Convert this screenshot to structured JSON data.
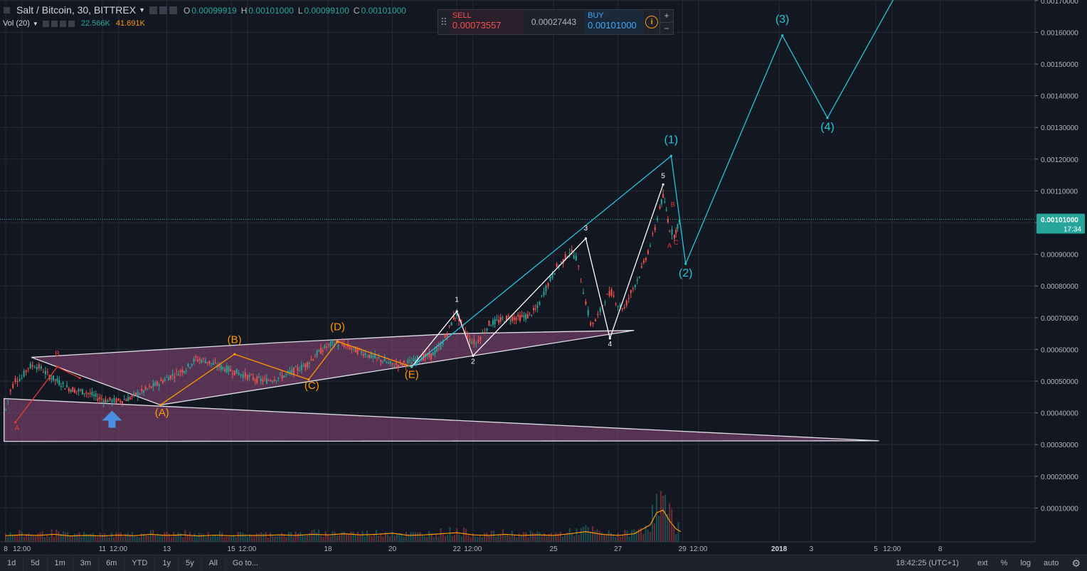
{
  "header": {
    "symbol": "Salt / Bitcoin, 30, BITTREX",
    "ohlc": [
      {
        "k": "O",
        "v": "0.00099919"
      },
      {
        "k": "H",
        "v": "0.00101000"
      },
      {
        "k": "L",
        "v": "0.00099100"
      },
      {
        "k": "C",
        "v": "0.00101000"
      }
    ]
  },
  "volume": {
    "label": "Vol (20)",
    "v1": "22.566K",
    "v2": "41.691K",
    "v1_color": "#26a69a",
    "v2_color": "#ff9800"
  },
  "trade": {
    "sell_label": "SELL",
    "sell_price": "0.00073557",
    "spread": "0.00027443",
    "buy_label": "BUY",
    "buy_price": "0.00101000",
    "info": "i",
    "plus": "+",
    "minus": "−"
  },
  "bottom_bar": {
    "timeframes": [
      "1d",
      "5d",
      "1m",
      "3m",
      "6m",
      "YTD",
      "1y",
      "5y",
      "All",
      "Go to..."
    ],
    "time": "18:42:25 (UTC+1)",
    "right": [
      "ext",
      "%",
      "log",
      "auto"
    ]
  },
  "chart_data": {
    "type": "candlestick",
    "price_axis": {
      "ticks": [
        "0.00170000",
        "0.00160000",
        "0.00150000",
        "0.00140000",
        "0.00130000",
        "0.00120000",
        "0.00110000",
        "0.00100000",
        "0.00090000",
        "0.00080000",
        "0.00070000",
        "0.00060000",
        "0.00050000",
        "0.00040000",
        "0.00030000",
        "0.00020000",
        "0.00010000"
      ],
      "current_price": "0.00101000",
      "countdown": "17:34",
      "current_color": "#26a69a"
    },
    "time_axis": {
      "ticks": [
        "8",
        "12:00",
        "11",
        "12:00",
        "13",
        "15",
        "12:00",
        "18",
        "20",
        "22",
        "12:00",
        "25",
        "27",
        "29",
        "12:00",
        "2018",
        "3",
        "5",
        "12:00",
        "8"
      ]
    },
    "price_path": [
      [
        8.0,
        0.00041
      ],
      [
        8.15,
        0.00047
      ],
      [
        8.3,
        0.000505
      ],
      [
        8.5,
        0.00051
      ],
      [
        8.7,
        0.000545
      ],
      [
        8.9,
        0.00055
      ],
      [
        9.1,
        0.00054
      ],
      [
        9.3,
        0.00052
      ],
      [
        9.6,
        0.0005
      ],
      [
        9.9,
        0.00048
      ],
      [
        10.2,
        0.00047
      ],
      [
        10.5,
        0.000465
      ],
      [
        10.8,
        0.00045
      ],
      [
        11.1,
        0.00044
      ],
      [
        11.5,
        0.000437
      ],
      [
        11.8,
        0.000445
      ],
      [
        12.1,
        0.00046
      ],
      [
        12.4,
        0.000475
      ],
      [
        12.7,
        0.00049
      ],
      [
        13.0,
        0.00051
      ],
      [
        13.3,
        0.000525
      ],
      [
        13.6,
        0.00054
      ],
      [
        13.9,
        0.00057
      ],
      [
        14.2,
        0.000565
      ],
      [
        14.5,
        0.00055
      ],
      [
        14.8,
        0.00054
      ],
      [
        15.1,
        0.00053
      ],
      [
        15.5,
        0.000515
      ],
      [
        15.8,
        0.000505
      ],
      [
        16.1,
        0.000502
      ],
      [
        16.4,
        0.00051
      ],
      [
        16.7,
        0.00052
      ],
      [
        17.0,
        0.000535
      ],
      [
        17.3,
        0.00055
      ],
      [
        17.6,
        0.00058
      ],
      [
        17.9,
        0.000605
      ],
      [
        18.2,
        0.00062
      ],
      [
        18.5,
        0.000615
      ],
      [
        18.8,
        0.0006
      ],
      [
        19.1,
        0.00059
      ],
      [
        19.4,
        0.000575
      ],
      [
        19.7,
        0.000565
      ],
      [
        20.0,
        0.00055
      ],
      [
        20.3,
        0.000555
      ],
      [
        20.6,
        0.00056
      ],
      [
        20.9,
        0.000575
      ],
      [
        21.2,
        0.00058
      ],
      [
        21.5,
        0.00061
      ],
      [
        21.7,
        0.00065
      ],
      [
        21.9,
        0.0007
      ],
      [
        22.0,
        0.00071
      ],
      [
        22.2,
        0.00067
      ],
      [
        22.4,
        0.00063
      ],
      [
        22.6,
        0.00062
      ],
      [
        22.8,
        0.00065
      ],
      [
        23.0,
        0.00068
      ],
      [
        23.3,
        0.00069
      ],
      [
        23.6,
        0.0007
      ],
      [
        23.9,
        0.0007
      ],
      [
        24.2,
        0.000705
      ],
      [
        24.5,
        0.00073
      ],
      [
        24.7,
        0.00078
      ],
      [
        24.9,
        0.00082
      ],
      [
        25.1,
        0.00086
      ],
      [
        25.3,
        0.00088
      ],
      [
        25.5,
        0.00091
      ],
      [
        25.7,
        0.00089
      ],
      [
        25.85,
        0.00082
      ],
      [
        26.0,
        0.00075
      ],
      [
        26.15,
        0.00068
      ],
      [
        26.3,
        0.00069
      ],
      [
        26.45,
        0.00072
      ],
      [
        26.6,
        0.00076
      ],
      [
        26.8,
        0.00078
      ],
      [
        27.0,
        0.00074
      ],
      [
        27.2,
        0.00073
      ],
      [
        27.4,
        0.00078
      ],
      [
        27.6,
        0.00082
      ],
      [
        27.8,
        0.00087
      ],
      [
        28.0,
        0.00093
      ],
      [
        28.15,
        0.00098
      ],
      [
        28.3,
        0.00105
      ],
      [
        28.4,
        0.00108
      ],
      [
        28.5,
        0.00104
      ],
      [
        28.6,
        0.00098
      ],
      [
        28.75,
        0.00096
      ],
      [
        28.85,
        0.00099
      ],
      [
        28.95,
        0.00101
      ]
    ],
    "volume_profile": [
      [
        8.0,
        1.5e-05
      ],
      [
        8.5,
        1.8e-05
      ],
      [
        9.0,
        1.6e-05
      ],
      [
        9.5,
        2e-05
      ],
      [
        10.0,
        1.4e-05
      ],
      [
        10.5,
        1.6e-05
      ],
      [
        11.0,
        1.4e-05
      ],
      [
        11.5,
        1.7e-05
      ],
      [
        12.0,
        1.5e-05
      ],
      [
        12.5,
        2e-05
      ],
      [
        13.0,
        1.6e-05
      ],
      [
        13.5,
        1.8e-05
      ],
      [
        14.0,
        1.4e-05
      ],
      [
        14.5,
        1.7e-05
      ],
      [
        15.0,
        1.5e-05
      ],
      [
        15.5,
        1.6e-05
      ],
      [
        16.0,
        1.6e-05
      ],
      [
        16.5,
        1.8e-05
      ],
      [
        17.0,
        1.6e-05
      ],
      [
        17.5,
        2e-05
      ],
      [
        18.0,
        1.8e-05
      ],
      [
        18.5,
        2.2e-05
      ],
      [
        19.0,
        1.8e-05
      ],
      [
        19.5,
        2e-05
      ],
      [
        20.0,
        2.4e-05
      ],
      [
        20.5,
        1.6e-05
      ],
      [
        21.0,
        1.8e-05
      ],
      [
        21.5,
        2.2e-05
      ],
      [
        22.0,
        2.6e-05
      ],
      [
        22.5,
        1.8e-05
      ],
      [
        23.0,
        1.6e-05
      ],
      [
        23.5,
        2e-05
      ],
      [
        24.0,
        1.6e-05
      ],
      [
        24.5,
        1.8e-05
      ],
      [
        25.0,
        1.6e-05
      ],
      [
        25.5,
        2.2e-05
      ],
      [
        26.0,
        3e-05
      ],
      [
        26.5,
        2e-05
      ],
      [
        27.0,
        1.6e-05
      ],
      [
        27.5,
        2.2e-05
      ],
      [
        28.0,
        5.5e-05
      ],
      [
        28.2,
        0.0001
      ],
      [
        28.4,
        0.00011
      ],
      [
        28.6,
        7e-05
      ],
      [
        28.8,
        4e-05
      ],
      [
        28.95,
        3e-05
      ]
    ],
    "triangles": [
      {
        "points": [
          [
            8.8,
            0.000575
          ],
          [
            16.2,
            0.00062
          ],
          [
            22.0,
            0.00065
          ],
          [
            27.5,
            0.00066
          ],
          [
            12.8,
            0.000425
          ]
        ],
        "fill": "#8e4b7a"
      },
      {
        "points": [
          [
            7.95,
            0.000445
          ],
          [
            35.1,
            0.000312
          ],
          [
            7.95,
            0.00031
          ]
        ],
        "fill": "#8e4b7a"
      }
    ],
    "lines": [
      {
        "color": "#e53935",
        "points": [
          [
            8.3,
            0.00037
          ],
          [
            9.6,
            0.000545
          ],
          [
            10.3,
            0.00051
          ]
        ]
      },
      {
        "color": "#ff9800",
        "points": [
          [
            12.8,
            0.000425
          ],
          [
            15.1,
            0.000585
          ],
          [
            17.4,
            0.000505
          ],
          [
            18.3,
            0.000625
          ],
          [
            20.6,
            0.000545
          ]
        ]
      },
      {
        "color": "#ffffff",
        "points": [
          [
            20.6,
            0.000545
          ],
          [
            22.0,
            0.00072
          ],
          [
            22.5,
            0.00058
          ],
          [
            26.0,
            0.00095
          ],
          [
            26.75,
            0.000635
          ],
          [
            28.4,
            0.00112
          ]
        ]
      },
      {
        "color": "#26c6da",
        "points": [
          [
            20.6,
            0.000545
          ],
          [
            28.65,
            0.00121
          ],
          [
            29.1,
            0.00087
          ],
          [
            32.1,
            0.00159
          ],
          [
            33.5,
            0.00133
          ],
          [
            35.8,
            0.00175
          ]
        ]
      }
    ],
    "labels": [
      {
        "t": "A",
        "x": 8.35,
        "y": 0.000345,
        "c": "#e53935",
        "s": 10
      },
      {
        "t": "B",
        "x": 9.6,
        "y": 0.00058,
        "c": "#e53935",
        "s": 10
      },
      {
        "t": "(A)",
        "x": 12.85,
        "y": 0.00039,
        "c": "#ff9800",
        "s": 15
      },
      {
        "t": "(B)",
        "x": 15.1,
        "y": 0.00062,
        "c": "#ff9800",
        "s": 15
      },
      {
        "t": "(C)",
        "x": 17.5,
        "y": 0.000475,
        "c": "#ff9800",
        "s": 15
      },
      {
        "t": "(D)",
        "x": 18.3,
        "y": 0.00066,
        "c": "#ff9800",
        "s": 15
      },
      {
        "t": "(E)",
        "x": 20.6,
        "y": 0.00051,
        "c": "#ff9800",
        "s": 15
      },
      {
        "t": "1",
        "x": 22.0,
        "y": 0.00075,
        "c": "#ffffff",
        "s": 10
      },
      {
        "t": "2",
        "x": 22.5,
        "y": 0.000555,
        "c": "#ffffff",
        "s": 10
      },
      {
        "t": "3",
        "x": 26.0,
        "y": 0.000975,
        "c": "#ffffff",
        "s": 10
      },
      {
        "t": "4",
        "x": 26.75,
        "y": 0.00061,
        "c": "#ffffff",
        "s": 10
      },
      {
        "t": "5",
        "x": 28.4,
        "y": 0.00114,
        "c": "#ffffff",
        "s": 10
      },
      {
        "t": "B",
        "x": 28.7,
        "y": 0.00105,
        "c": "#e53935",
        "s": 9
      },
      {
        "t": "A",
        "x": 28.6,
        "y": 0.00092,
        "c": "#e53935",
        "s": 9
      },
      {
        "t": "C",
        "x": 28.8,
        "y": 0.00093,
        "c": "#e53935",
        "s": 9
      },
      {
        "t": "(1)",
        "x": 28.65,
        "y": 0.00125,
        "c": "#26c6da",
        "s": 16
      },
      {
        "t": "(2)",
        "x": 29.1,
        "y": 0.00083,
        "c": "#26c6da",
        "s": 16
      },
      {
        "t": "(3)",
        "x": 32.1,
        "y": 0.00163,
        "c": "#26c6da",
        "s": 16
      },
      {
        "t": "(4)",
        "x": 33.5,
        "y": 0.00129,
        "c": "#26c6da",
        "s": 16
      }
    ],
    "arrow": {
      "x": 11.3,
      "y": 0.00038,
      "color": "#4a90e2",
      "direction": "up"
    }
  }
}
